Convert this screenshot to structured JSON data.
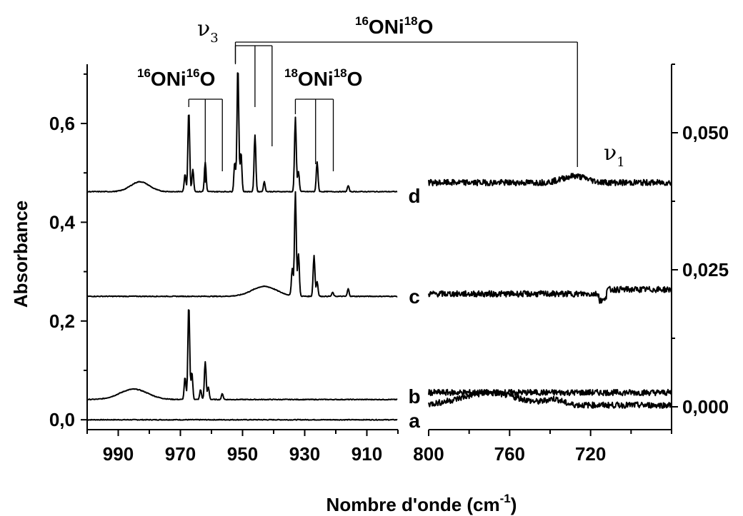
{
  "chart_data": [
    {
      "type": "line",
      "panel": "left",
      "xlabel": "Nombre d'onde (cm",
      "xlabel_sup": "-1",
      "xlabel_tail": ")",
      "ylabel": "Absorbance",
      "xlim": [
        1000,
        900
      ],
      "ylim": [
        -0.02,
        0.72
      ],
      "xticks": [
        990,
        970,
        950,
        930,
        910
      ],
      "yticks": [
        "0,0",
        "0,2",
        "0,4",
        "0,6"
      ],
      "ytick_values": [
        0.0,
        0.2,
        0.4,
        0.6
      ],
      "series": [
        {
          "label": "a",
          "baseline": 0.0,
          "points": [
            [
              1000,
              0.0
            ],
            [
              900,
              0.0
            ]
          ]
        },
        {
          "label": "b",
          "baseline": 0.041,
          "bumps": [
            [
              985,
              0.021,
              4.5
            ]
          ],
          "peaks": [
            [
              968.5,
              0.045
            ],
            [
              967.3,
              0.193
            ],
            [
              966.3,
              0.055
            ],
            [
              963.5,
              0.02
            ],
            [
              962,
              0.077
            ],
            [
              961,
              0.025
            ],
            [
              956.5,
              0.012
            ]
          ]
        },
        {
          "label": "c",
          "baseline": 0.25,
          "bumps": [
            [
              943,
              0.02,
              4
            ]
          ],
          "peaks": [
            [
              934,
              0.055
            ],
            [
              933,
              0.21
            ],
            [
              932,
              0.085
            ],
            [
              927,
              0.083
            ],
            [
              926,
              0.03
            ],
            [
              921,
              0.008
            ],
            [
              916,
              0.015
            ]
          ]
        },
        {
          "label": "d",
          "baseline": 0.462,
          "bumps": [
            [
              983,
              0.02,
              3
            ]
          ],
          "peaks": [
            [
              968.5,
              0.035
            ],
            [
              967.3,
              0.165
            ],
            [
              966,
              0.045
            ],
            [
              962,
              0.06
            ],
            [
              952.5,
              0.06
            ],
            [
              951.5,
              0.255
            ],
            [
              950.5,
              0.08
            ],
            [
              946,
              0.115
            ],
            [
              943,
              0.02
            ],
            [
              933,
              0.15
            ],
            [
              932,
              0.04
            ],
            [
              926,
              0.06
            ],
            [
              916,
              0.012
            ]
          ]
        }
      ]
    },
    {
      "type": "line",
      "panel": "right",
      "xlim": [
        800,
        680
      ],
      "ylim": [
        -0.00417,
        0.0625
      ],
      "xticks": [
        800,
        760,
        720
      ],
      "yticks": [
        "0,000",
        "0,025",
        "0,050"
      ],
      "ytick_values": [
        0.0,
        0.025,
        0.05
      ],
      "series": [
        {
          "label": "a",
          "baseline": 0.0026
        },
        {
          "label": "b",
          "baseline": 0.0003
        },
        {
          "label": "c",
          "baseline": 0.0206
        },
        {
          "label": "d",
          "baseline": 0.0409
        }
      ]
    }
  ],
  "annotations": {
    "nu3": {
      "symbol": "ν",
      "sub": "3"
    },
    "nu1": {
      "symbol": "ν",
      "sub": "1"
    },
    "iso_1616": {
      "sup1": "16",
      "mid": "ONi",
      "sup2": "16",
      "end": "O"
    },
    "iso_1818": {
      "sup1": "18",
      "mid": "ONi",
      "sup2": "18",
      "end": "O"
    },
    "iso_1618": {
      "sup1": "16",
      "mid": "ONi",
      "sup2": "18",
      "end": "O"
    }
  },
  "trace_labels": [
    "a",
    "b",
    "c",
    "d"
  ]
}
